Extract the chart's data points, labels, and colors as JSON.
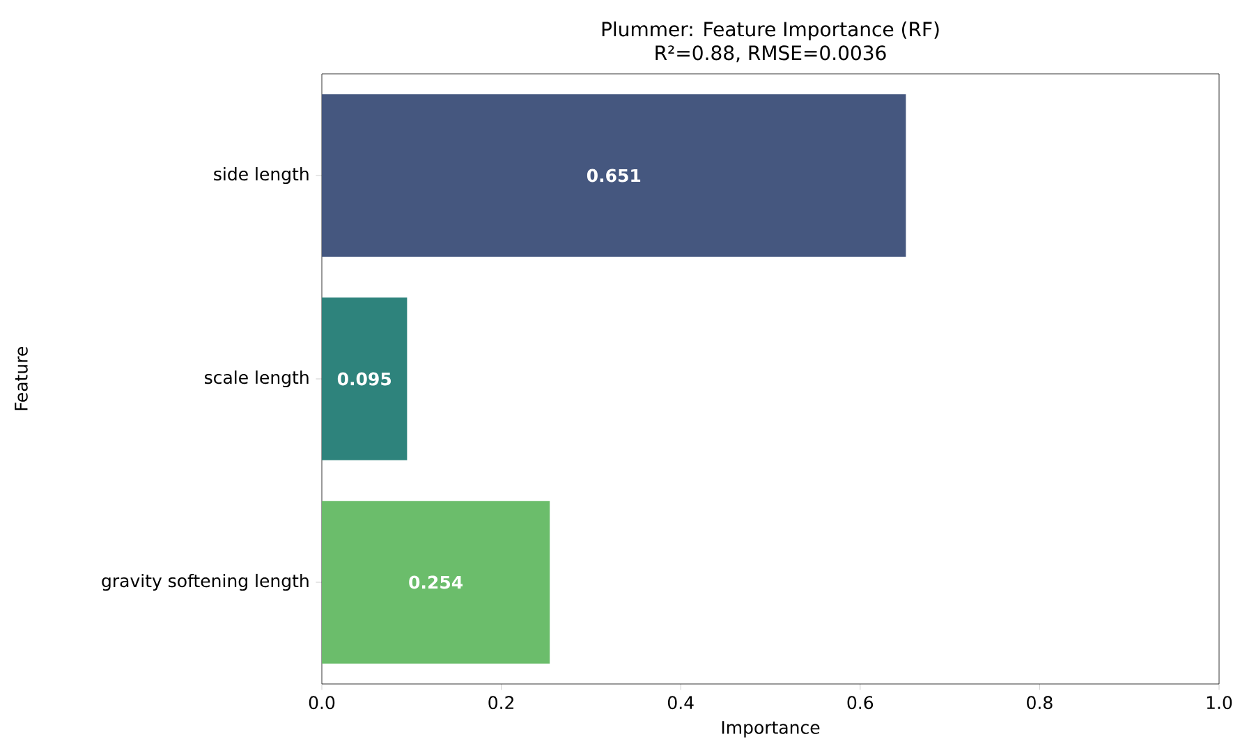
{
  "chart_data": {
    "type": "bar",
    "orientation": "horizontal",
    "title": "Plummer: Feature Importance (RF)",
    "subtitle": "R²=0.88, RMSE=0.0036",
    "xlabel": "Importance",
    "ylabel": "Feature",
    "categories": [
      "side length",
      "scale length",
      "gravity softening length"
    ],
    "values": [
      0.651,
      0.095,
      0.254
    ],
    "colors": [
      "#45577f",
      "#2e837c",
      "#6bbd6b"
    ],
    "xlim": [
      0,
      1
    ],
    "xticks": [
      {
        "value": 0,
        "label": "0.0"
      },
      0.2,
      0.4,
      0.6,
      0.8,
      {
        "value": 1,
        "label": "1.0"
      }
    ],
    "data_labels": true,
    "grid": false
  }
}
